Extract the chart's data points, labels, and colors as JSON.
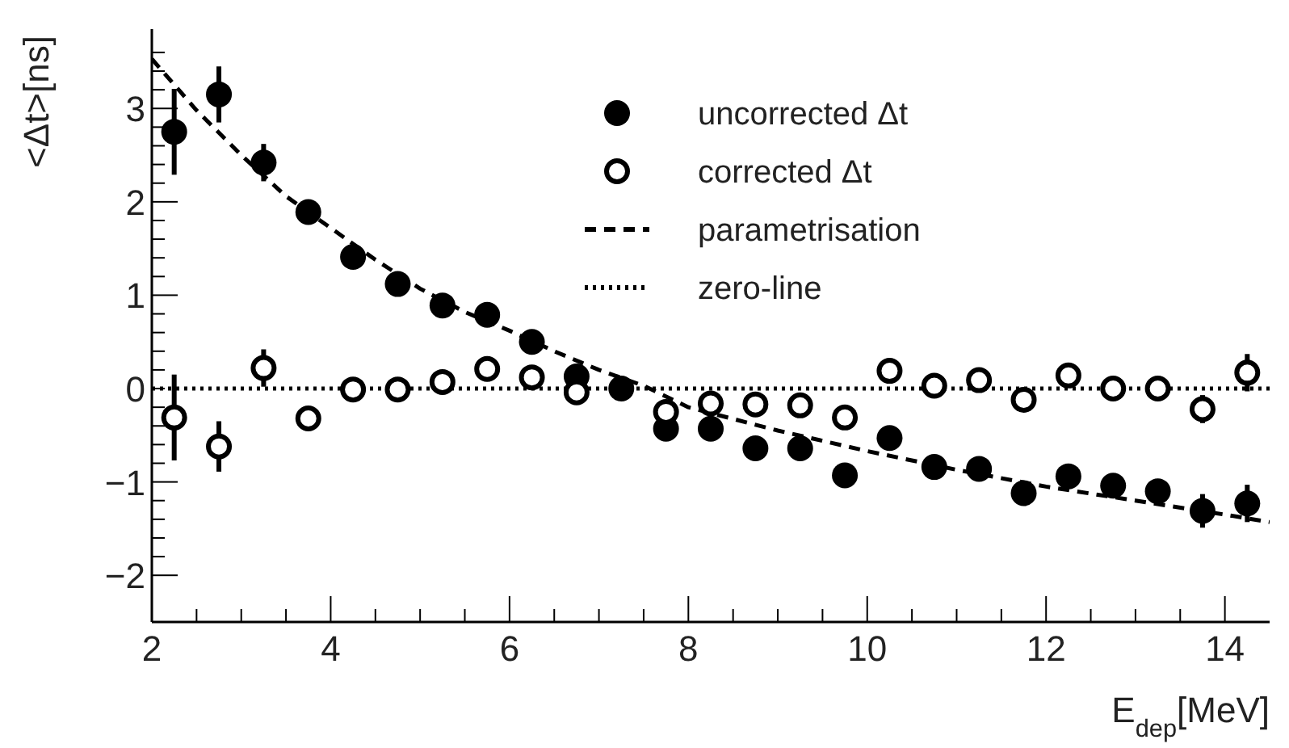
{
  "chart_data": {
    "type": "scatter",
    "xlabel": "E$_{dep}$[MeV]",
    "ylabel": "<Δt>[ns]",
    "xlim": [
      2,
      14.5
    ],
    "ylim": [
      -2.5,
      3.85
    ],
    "xticks": [
      2,
      {
        "value": 2.5,
        "label": null
      },
      {
        "value": 3,
        "label": null
      },
      {
        "value": 3.5,
        "label": null
      },
      4,
      {
        "value": 4.5,
        "label": null
      },
      {
        "value": 5,
        "label": null
      },
      {
        "value": 5.5,
        "label": null
      },
      6,
      {
        "value": 6.5,
        "label": null
      },
      {
        "value": 7,
        "label": null
      },
      {
        "value": 7.5,
        "label": null
      },
      8,
      {
        "value": 8.5,
        "label": null
      },
      {
        "value": 9,
        "label": null
      },
      {
        "value": 9.5,
        "label": null
      },
      10,
      {
        "value": 10.5,
        "label": null
      },
      {
        "value": 11,
        "label": null
      },
      {
        "value": 11.5,
        "label": null
      },
      12,
      {
        "value": 12.5,
        "label": null
      },
      {
        "value": 13,
        "label": null
      },
      {
        "value": 13.5,
        "label": null
      },
      14
    ],
    "yticks": [
      -2,
      {
        "value": -1.8,
        "label": null
      },
      {
        "value": -1.6,
        "label": null
      },
      {
        "value": -1.4,
        "label": null
      },
      {
        "value": -1.2,
        "label": null
      },
      -1,
      {
        "value": -0.8,
        "label": null
      },
      {
        "value": -0.6,
        "label": null
      },
      {
        "value": -0.4,
        "label": null
      },
      {
        "value": -0.2,
        "label": null
      },
      0,
      {
        "value": 0.2,
        "label": null
      },
      {
        "value": 0.4,
        "label": null
      },
      {
        "value": 0.6,
        "label": null
      },
      {
        "value": 0.8,
        "label": null
      },
      1,
      {
        "value": 1.2,
        "label": null
      },
      {
        "value": 1.4,
        "label": null
      },
      {
        "value": 1.6,
        "label": null
      },
      {
        "value": 1.8,
        "label": null
      },
      2,
      {
        "value": 2.2,
        "label": null
      },
      {
        "value": 2.4,
        "label": null
      },
      {
        "value": 2.6,
        "label": null
      },
      {
        "value": 2.8,
        "label": null
      },
      3,
      {
        "value": 3.2,
        "label": null
      },
      {
        "value": 3.4,
        "label": null
      },
      {
        "value": 3.6,
        "label": null
      }
    ],
    "legend": "top right",
    "x": [
      2.25,
      2.75,
      3.25,
      3.75,
      4.25,
      4.75,
      5.25,
      5.75,
      6.25,
      6.75,
      7.25,
      7.75,
      8.25,
      8.75,
      9.25,
      9.75,
      10.25,
      10.75,
      11.25,
      11.75,
      12.25,
      12.75,
      13.25,
      13.75,
      14.25
    ],
    "series": [
      {
        "name": "uncorrected Δt",
        "type": "scatter",
        "marker": "circle",
        "color": "#000000",
        "values": [
          2.75,
          3.15,
          2.42,
          1.89,
          1.41,
          1.12,
          0.89,
          0.79,
          0.5,
          0.13,
          0.0,
          -0.43,
          -0.43,
          -0.64,
          -0.64,
          -0.93,
          -0.53,
          -0.84,
          -0.86,
          -1.12,
          -0.94,
          -1.04,
          -1.1,
          -1.31,
          -1.23
        ],
        "errors": [
          0.46,
          0.3,
          0.2,
          0.1,
          null,
          null,
          null,
          null,
          null,
          null,
          null,
          null,
          null,
          null,
          null,
          null,
          null,
          null,
          null,
          null,
          0.1,
          0.12,
          null,
          0.18,
          0.2
        ]
      },
      {
        "name": "corrected Δt",
        "type": "scatter",
        "marker": "circle-open",
        "color": "#000000",
        "values": [
          -0.31,
          -0.62,
          0.22,
          -0.32,
          -0.01,
          -0.01,
          0.07,
          0.21,
          0.12,
          -0.04,
          null,
          -0.25,
          -0.16,
          -0.17,
          -0.18,
          -0.31,
          0.19,
          0.03,
          0.09,
          -0.12,
          0.14,
          0.0,
          0.0,
          -0.22,
          0.17
        ],
        "errors": [
          0.46,
          0.27,
          0.2,
          0.1,
          null,
          null,
          null,
          null,
          null,
          null,
          null,
          null,
          null,
          null,
          null,
          null,
          null,
          null,
          null,
          null,
          null,
          null,
          null,
          0.15,
          0.2
        ]
      },
      {
        "name": "parametrisation",
        "type": "line",
        "marker": "none",
        "line_style": "dashed",
        "color": "#000000",
        "x": [
          2,
          2.5,
          3,
          3.5,
          4,
          4.5,
          5,
          5.5,
          6,
          6.5,
          7,
          7.5,
          8,
          9,
          10,
          11,
          12,
          13,
          14,
          14.5
        ],
        "values": [
          3.53,
          2.98,
          2.5,
          2.06,
          1.72,
          1.38,
          1.07,
          0.82,
          0.62,
          0.4,
          0.2,
          0.03,
          -0.2,
          -0.45,
          -0.67,
          -0.87,
          -1.05,
          -1.2,
          -1.35,
          -1.43
        ]
      }
    ],
    "ref_lines": [
      {
        "axis": "y",
        "value": 0,
        "label": "zero-line",
        "line_style": "dotted",
        "color": "#000000"
      }
    ]
  }
}
